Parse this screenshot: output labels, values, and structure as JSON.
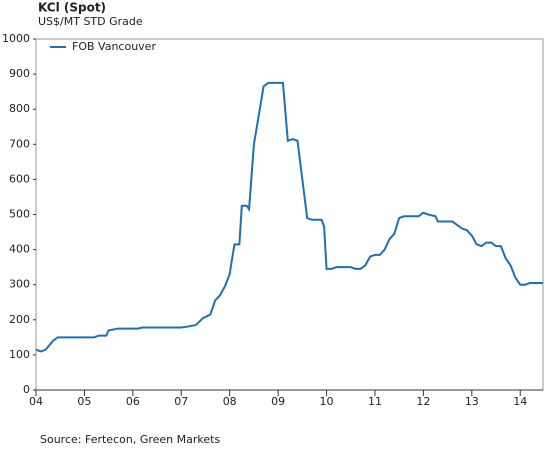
{
  "chart_data": {
    "type": "line",
    "title": "KCl (Spot)",
    "subtitle": "US$/MT STD Grade",
    "source": "Source: Fertecon, Green Markets",
    "legend": "top-left",
    "xlim": [
      2004,
      2014.47
    ],
    "xticks": [
      {
        "value": 2004,
        "label": "04"
      },
      {
        "value": 2005,
        "label": "05"
      },
      {
        "value": 2006,
        "label": "06"
      },
      {
        "value": 2007,
        "label": "07"
      },
      {
        "value": 2008,
        "label": "08"
      },
      {
        "value": 2009,
        "label": "09"
      },
      {
        "value": 2010,
        "label": "10"
      },
      {
        "value": 2011,
        "label": "11"
      },
      {
        "value": 2012,
        "label": "12"
      },
      {
        "value": 2013,
        "label": "13"
      },
      {
        "value": 2014,
        "label": "14"
      }
    ],
    "ylim": [
      0,
      1000
    ],
    "yticks": [
      0,
      100,
      200,
      300,
      400,
      500,
      600,
      700,
      800,
      900,
      1000
    ],
    "x": [
      2004.0,
      2004.1,
      2004.2,
      2004.35,
      2004.45,
      2005.2,
      2005.3,
      2005.45,
      2005.5,
      2005.7,
      2006.1,
      2006.2,
      2007.0,
      2007.1,
      2007.3,
      2007.45,
      2007.6,
      2007.7,
      2007.8,
      2007.9,
      2008.0,
      2008.05,
      2008.1,
      2008.2,
      2008.25,
      2008.35,
      2008.4,
      2008.5,
      2008.7,
      2008.8,
      2009.1,
      2009.2,
      2009.3,
      2009.4,
      2009.5,
      2009.6,
      2009.7,
      2009.9,
      2009.95,
      2010.0,
      2010.1,
      2010.2,
      2010.5,
      2010.6,
      2010.7,
      2010.8,
      2010.9,
      2011.0,
      2011.1,
      2011.2,
      2011.3,
      2011.4,
      2011.5,
      2011.6,
      2011.9,
      2012.0,
      2012.1,
      2012.25,
      2012.3,
      2012.6,
      2012.7,
      2012.8,
      2012.9,
      2013.0,
      2013.1,
      2013.2,
      2013.3,
      2013.4,
      2013.5,
      2013.6,
      2013.7,
      2013.8,
      2013.9,
      2014.0,
      2014.1,
      2014.2,
      2014.3,
      2014.47
    ],
    "series": [
      {
        "name": "FOB Vancouver",
        "color": "#1f6fb2",
        "values": [
          115,
          110,
          115,
          140,
          150,
          150,
          155,
          155,
          170,
          175,
          175,
          178,
          178,
          180,
          185,
          205,
          215,
          255,
          270,
          295,
          330,
          375,
          415,
          415,
          525,
          525,
          515,
          700,
          865,
          875,
          875,
          710,
          715,
          710,
          600,
          490,
          485,
          485,
          465,
          345,
          345,
          350,
          350,
          345,
          345,
          355,
          380,
          385,
          385,
          400,
          430,
          445,
          490,
          495,
          495,
          505,
          500,
          495,
          480,
          480,
          470,
          460,
          455,
          440,
          415,
          410,
          420,
          420,
          410,
          410,
          375,
          355,
          320,
          300,
          300,
          305,
          305,
          305
        ]
      }
    ]
  }
}
